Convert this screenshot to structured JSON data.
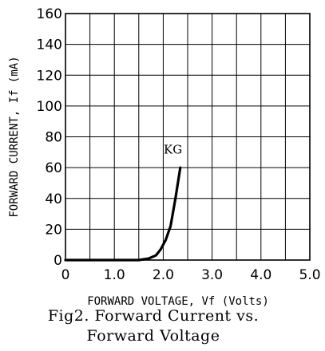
{
  "chart_data": {
    "type": "line",
    "xlabel": "FORWARD VOLTAGE, Vf (Volts)",
    "ylabel": "FORWARD CURRENT, If (mA)",
    "xlim": [
      0,
      5.0
    ],
    "ylim": [
      0,
      160
    ],
    "x_ticks": [
      "0",
      "1.0",
      "2.0",
      "3.0",
      "4.0",
      "5.0"
    ],
    "y_ticks": [
      "0",
      "20",
      "40",
      "60",
      "80",
      "100",
      "120",
      "140",
      "160"
    ],
    "grid": true,
    "series": [
      {
        "name": "KG",
        "x": [
          0,
          1.0,
          1.5,
          1.7,
          1.85,
          1.95,
          2.05,
          2.15,
          2.25,
          2.35
        ],
        "y": [
          0,
          0,
          0,
          1,
          3,
          7,
          13,
          22,
          40,
          60
        ],
        "color": "#000000"
      }
    ],
    "annotations": [
      {
        "text": "KG",
        "x": 2.2,
        "y": 69
      }
    ]
  },
  "caption": {
    "line1": "Fig2.  Forward Current vs.",
    "line2": "Forward Voltage"
  }
}
